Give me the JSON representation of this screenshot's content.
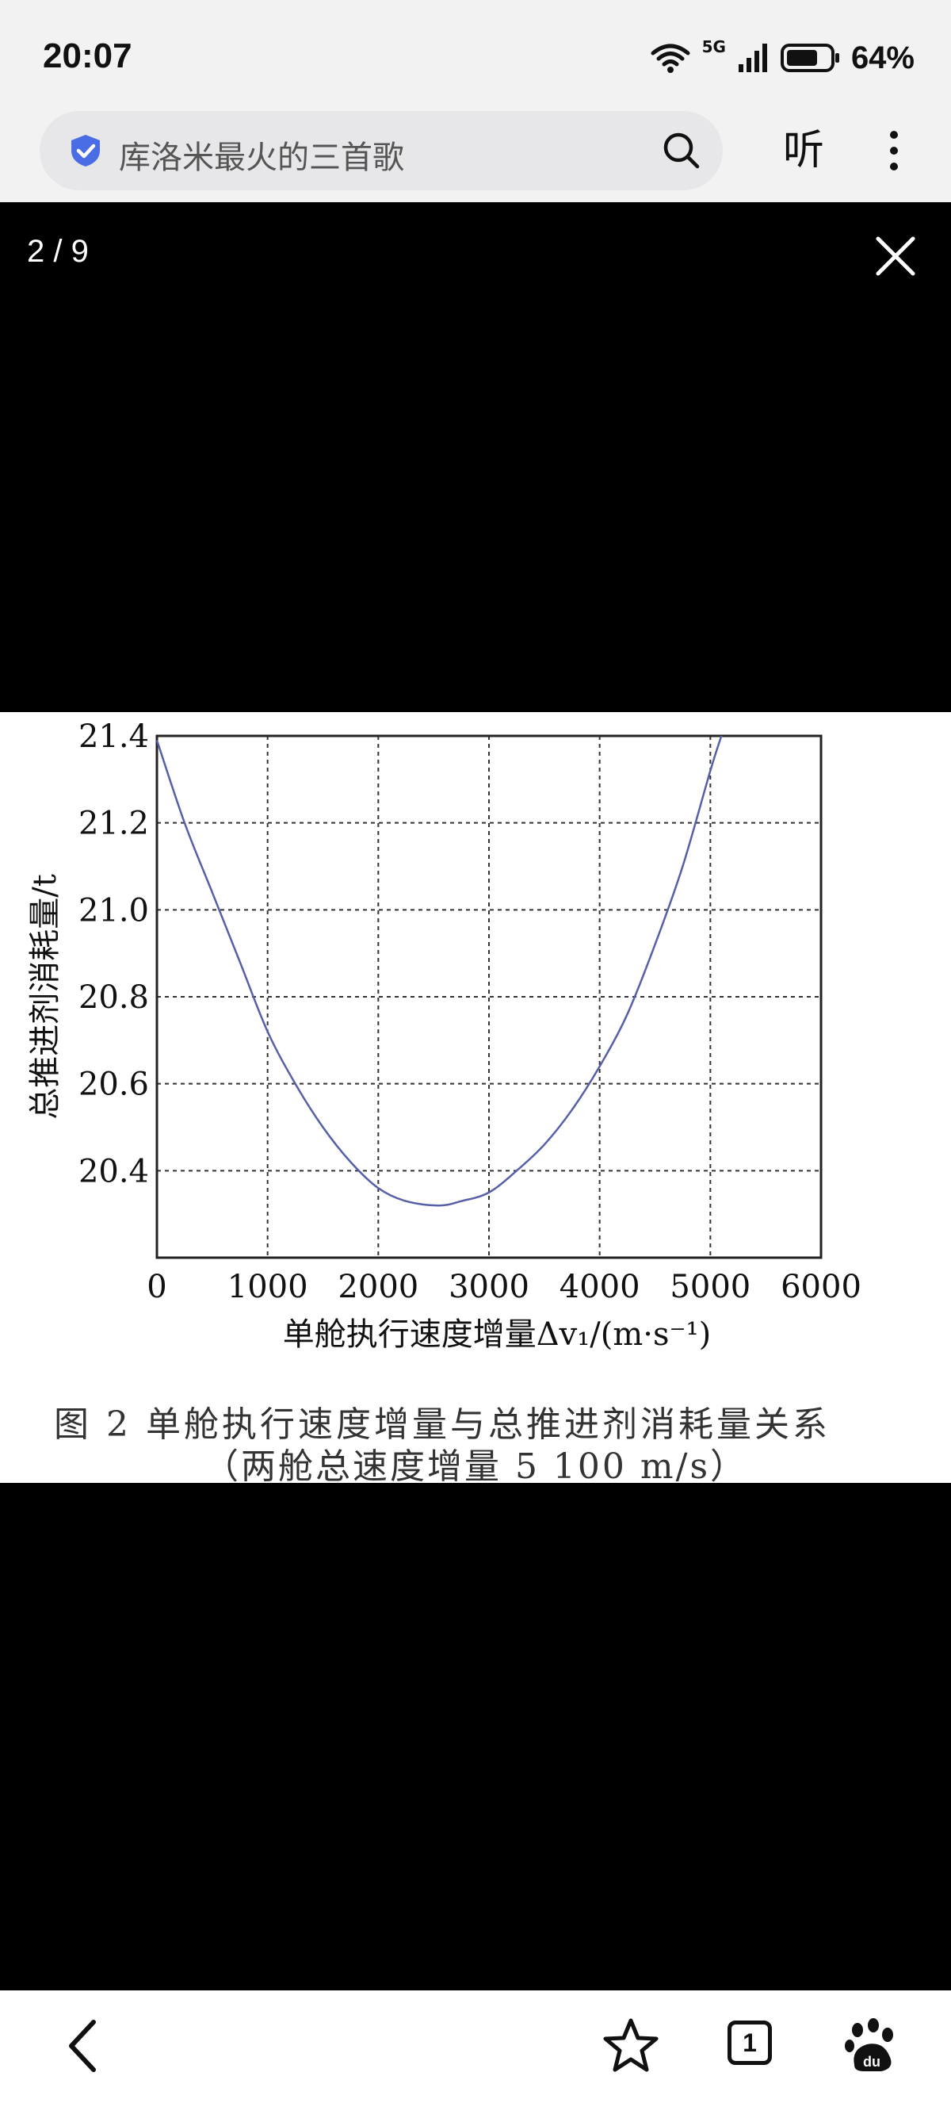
{
  "status": {
    "time": "20:07",
    "network": "5G",
    "battery": "64%"
  },
  "search": {
    "query": "库洛米最火的三首歌",
    "listen_label": "听"
  },
  "viewer": {
    "page_counter": "2 / 9"
  },
  "figure": {
    "caption_line1": "图 2   单舱执行速度增量与总推进剂消耗量关系",
    "caption_line2": "（两舱总速度增量 5 100 m/s）"
  },
  "chart_data": {
    "type": "line",
    "xlabel": "单舱执行速度增量Δv₁/(m·s⁻¹)",
    "ylabel": "总推进剂消耗量/t",
    "xlim": [
      0,
      6000
    ],
    "ylim": [
      20.2,
      21.4
    ],
    "xticks": [
      "0",
      "1000",
      "2000",
      "3000",
      "4000",
      "5000",
      "6000"
    ],
    "yticks": [
      "20.4",
      "20.6",
      "20.8",
      "21.0",
      "21.2",
      "21.4"
    ],
    "grid": true,
    "line_color": "#5560a8",
    "series": [
      {
        "x": [
          0,
          250,
          500,
          750,
          1000,
          1250,
          1500,
          1750,
          2000,
          2250,
          2550,
          2750,
          3000,
          3250,
          3500,
          3750,
          4000,
          4250,
          4500,
          4750,
          5000,
          5100
        ],
        "y": [
          21.39,
          21.2,
          21.04,
          20.88,
          20.72,
          20.6,
          20.5,
          20.42,
          20.36,
          20.33,
          20.32,
          20.33,
          20.35,
          20.4,
          20.46,
          20.54,
          20.64,
          20.76,
          20.92,
          21.1,
          21.32,
          21.4
        ]
      }
    ]
  },
  "bottom_nav": {
    "tab_count": "1"
  }
}
